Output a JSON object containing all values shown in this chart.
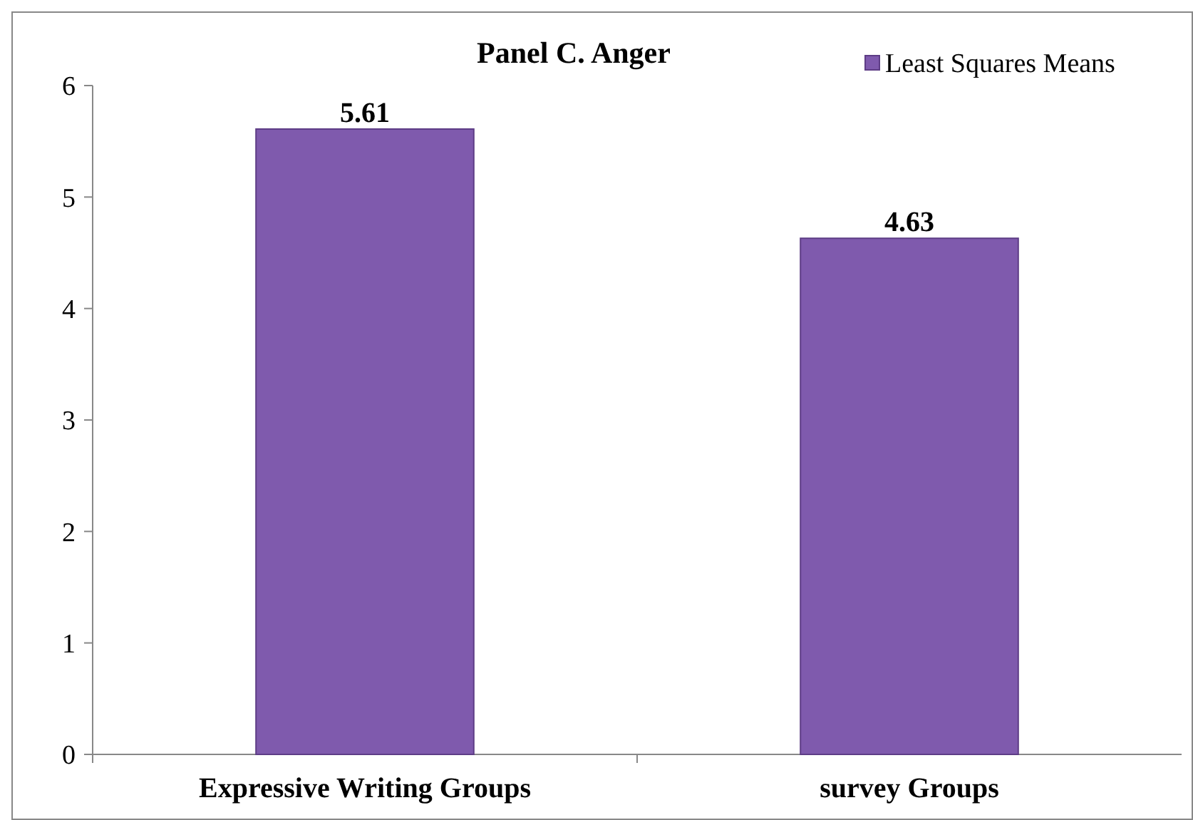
{
  "chart_data": {
    "type": "bar",
    "title": "Panel C. Anger",
    "categories": [
      "Expressive Writing Groups",
      "survey Groups"
    ],
    "series": [
      {
        "name": "Least Squares Means",
        "color": "#7f5aad",
        "values": [
          5.61,
          4.63
        ]
      }
    ],
    "ylim": [
      0,
      6
    ],
    "yticks": [
      0,
      1,
      2,
      3,
      4,
      5,
      6
    ],
    "grid": false,
    "legend": "top right",
    "data_labels": true
  }
}
